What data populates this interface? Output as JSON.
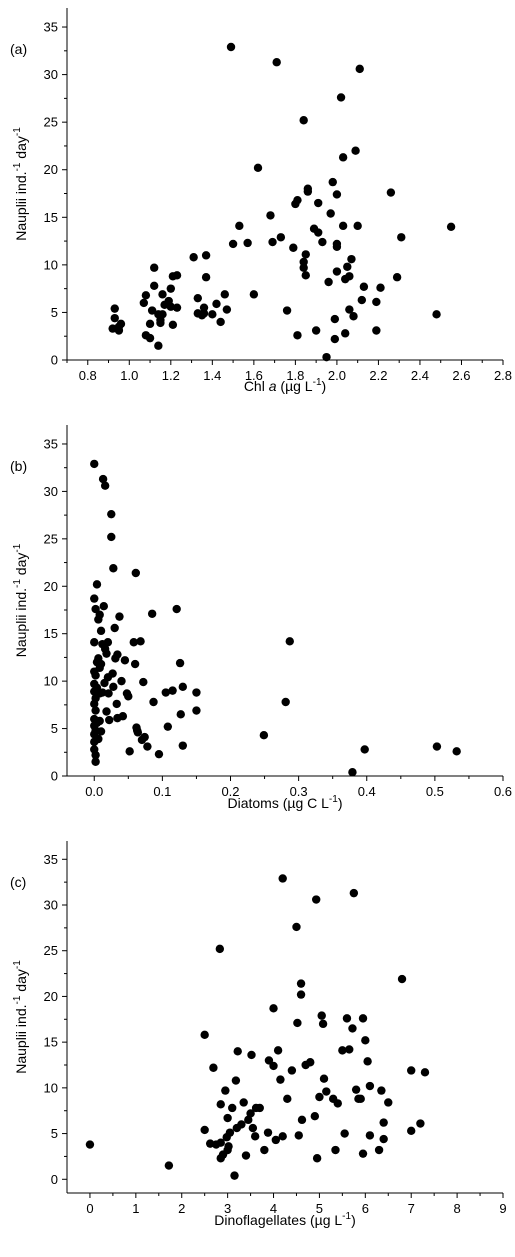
{
  "chart_data": [
    {
      "type": "scatter",
      "panel_label": "(a)",
      "xlabel": {
        "pre": "Chl ",
        "italic": "a",
        "post": " (µg L",
        "sup": "-1",
        "close": ")"
      },
      "ylabel": {
        "pre": "Nauplii ind.",
        "sup1": "-1",
        "mid": " day",
        "sup2": "-1"
      },
      "xlim": [
        0.7,
        2.8
      ],
      "ylim": [
        0,
        37
      ],
      "xticks": [
        0.8,
        1.0,
        1.2,
        1.4,
        1.6,
        1.8,
        2.0,
        2.2,
        2.4,
        2.6,
        2.8
      ],
      "xtick_labels": [
        "0.8",
        "1.0",
        "1.2",
        "1.4",
        "1.6",
        "1.8",
        "2.0",
        "2.2",
        "2.4",
        "2.6",
        "2.8"
      ],
      "yticks": [
        0,
        5,
        10,
        15,
        20,
        25,
        30,
        35
      ],
      "ytick_labels": [
        "0",
        "5",
        "10",
        "15",
        "20",
        "25",
        "30",
        "35"
      ],
      "points": [
        [
          0.92,
          3.3
        ],
        [
          0.93,
          4.4
        ],
        [
          0.93,
          5.4
        ],
        [
          0.95,
          3.1
        ],
        [
          0.96,
          3.8
        ],
        [
          0.95,
          3.5
        ],
        [
          1.07,
          6.0
        ],
        [
          1.08,
          6.8
        ],
        [
          1.08,
          2.6
        ],
        [
          1.1,
          3.8
        ],
        [
          1.1,
          2.3
        ],
        [
          1.11,
          5.2
        ],
        [
          1.12,
          7.8
        ],
        [
          1.12,
          9.7
        ],
        [
          1.14,
          4.8
        ],
        [
          1.14,
          1.5
        ],
        [
          1.15,
          4.2
        ],
        [
          1.15,
          3.9
        ],
        [
          1.16,
          6.9
        ],
        [
          1.16,
          4.8
        ],
        [
          1.17,
          5.8
        ],
        [
          1.19,
          6.2
        ],
        [
          1.2,
          7.5
        ],
        [
          1.2,
          5.6
        ],
        [
          1.21,
          8.8
        ],
        [
          1.21,
          3.7
        ],
        [
          1.23,
          8.9
        ],
        [
          1.23,
          5.5
        ],
        [
          1.31,
          10.8
        ],
        [
          1.33,
          6.5
        ],
        [
          1.33,
          4.9
        ],
        [
          1.35,
          4.7
        ],
        [
          1.36,
          4.9
        ],
        [
          1.36,
          5.5
        ],
        [
          1.37,
          11.0
        ],
        [
          1.37,
          8.7
        ],
        [
          1.4,
          4.8
        ],
        [
          1.42,
          5.9
        ],
        [
          1.44,
          4.0
        ],
        [
          1.46,
          6.9
        ],
        [
          1.47,
          5.3
        ],
        [
          1.5,
          12.2
        ],
        [
          1.53,
          14.1
        ],
        [
          1.57,
          12.3
        ],
        [
          1.6,
          6.9
        ],
        [
          1.62,
          20.2
        ],
        [
          1.49,
          32.9
        ],
        [
          1.71,
          31.3
        ],
        [
          1.68,
          15.2
        ],
        [
          1.69,
          12.4
        ],
        [
          1.73,
          12.9
        ],
        [
          1.76,
          5.2
        ],
        [
          1.79,
          11.8
        ],
        [
          1.8,
          16.4
        ],
        [
          1.81,
          16.8
        ],
        [
          1.81,
          2.6
        ],
        [
          1.84,
          10.3
        ],
        [
          1.84,
          9.7
        ],
        [
          1.84,
          25.2
        ],
        [
          1.85,
          8.9
        ],
        [
          1.85,
          11.1
        ],
        [
          1.86,
          17.7
        ],
        [
          1.86,
          18.0
        ],
        [
          1.89,
          13.8
        ],
        [
          1.9,
          3.1
        ],
        [
          1.91,
          13.4
        ],
        [
          1.91,
          16.5
        ],
        [
          1.93,
          12.4
        ],
        [
          1.95,
          0.3
        ],
        [
          1.96,
          8.2
        ],
        [
          1.97,
          15.4
        ],
        [
          1.98,
          18.7
        ],
        [
          1.99,
          4.3
        ],
        [
          1.99,
          2.2
        ],
        [
          2.0,
          12.2
        ],
        [
          2.0,
          11.9
        ],
        [
          2.0,
          9.3
        ],
        [
          2.0,
          17.4
        ],
        [
          2.02,
          27.6
        ],
        [
          2.03,
          21.3
        ],
        [
          2.03,
          14.1
        ],
        [
          2.04,
          8.5
        ],
        [
          2.04,
          2.8
        ],
        [
          2.05,
          9.8
        ],
        [
          2.06,
          8.8
        ],
        [
          2.06,
          5.3
        ],
        [
          2.07,
          10.6
        ],
        [
          2.08,
          4.6
        ],
        [
          2.09,
          22.0
        ],
        [
          2.1,
          14.1
        ],
        [
          2.11,
          30.6
        ],
        [
          2.12,
          6.3
        ],
        [
          2.13,
          7.7
        ],
        [
          2.19,
          6.1
        ],
        [
          2.19,
          3.1
        ],
        [
          2.21,
          7.6
        ],
        [
          2.26,
          17.6
        ],
        [
          2.29,
          8.7
        ],
        [
          2.31,
          12.9
        ],
        [
          2.48,
          4.8
        ],
        [
          2.55,
          14.0
        ]
      ]
    },
    {
      "type": "scatter",
      "panel_label": "(b)",
      "xlabel": {
        "pre": "Diatoms (µg C L",
        "sup": "-1",
        "close": ")"
      },
      "ylabel": {
        "pre": "Nauplii ind.",
        "sup1": "-1",
        "mid": " day",
        "sup2": "-1"
      },
      "xlim": [
        -0.04,
        0.6
      ],
      "ylim": [
        0,
        37
      ],
      "xticks": [
        0.0,
        0.1,
        0.2,
        0.3,
        0.4,
        0.5,
        0.6
      ],
      "xtick_labels": [
        "0.0",
        "0.1",
        "0.2",
        "0.3",
        "0.4",
        "0.5",
        "0.6"
      ],
      "yticks": [
        0,
        5,
        10,
        15,
        20,
        25,
        30,
        35
      ],
      "ytick_labels": [
        "0",
        "5",
        "10",
        "15",
        "20",
        "25",
        "30",
        "35"
      ],
      "points": [
        [
          0.0,
          32.9
        ],
        [
          0.0,
          18.7
        ],
        [
          0.0,
          14.1
        ],
        [
          0.0,
          11.0
        ],
        [
          0.0,
          9.7
        ],
        [
          0.0,
          8.9
        ],
        [
          0.0,
          7.6
        ],
        [
          0.0,
          6.0
        ],
        [
          0.0,
          5.3
        ],
        [
          0.0,
          4.4
        ],
        [
          0.0,
          3.6
        ],
        [
          0.0,
          2.8
        ],
        [
          0.002,
          17.6
        ],
        [
          0.002,
          10.6
        ],
        [
          0.002,
          8.2
        ],
        [
          0.002,
          6.9
        ],
        [
          0.002,
          4.8
        ],
        [
          0.002,
          2.2
        ],
        [
          0.002,
          1.5
        ],
        [
          0.004,
          20.2
        ],
        [
          0.004,
          12.0
        ],
        [
          0.004,
          9.3
        ],
        [
          0.004,
          5.6
        ],
        [
          0.006,
          16.5
        ],
        [
          0.006,
          12.4
        ],
        [
          0.006,
          8.8
        ],
        [
          0.006,
          3.9
        ],
        [
          0.008,
          17.0
        ],
        [
          0.008,
          11.4
        ],
        [
          0.008,
          8.7
        ],
        [
          0.008,
          5.8
        ],
        [
          0.01,
          15.3
        ],
        [
          0.01,
          11.8
        ],
        [
          0.01,
          4.7
        ],
        [
          0.012,
          13.9
        ],
        [
          0.012,
          8.8
        ],
        [
          0.013,
          31.3
        ],
        [
          0.014,
          17.9
        ],
        [
          0.015,
          9.8
        ],
        [
          0.016,
          30.6
        ],
        [
          0.016,
          13.4
        ],
        [
          0.018,
          12.9
        ],
        [
          0.018,
          6.8
        ],
        [
          0.02,
          14.1
        ],
        [
          0.02,
          10.4
        ],
        [
          0.021,
          8.7
        ],
        [
          0.022,
          5.9
        ],
        [
          0.025,
          27.6
        ],
        [
          0.025,
          25.2
        ],
        [
          0.027,
          10.8
        ],
        [
          0.028,
          21.9
        ],
        [
          0.028,
          9.4
        ],
        [
          0.03,
          15.6
        ],
        [
          0.031,
          12.4
        ],
        [
          0.033,
          7.6
        ],
        [
          0.034,
          6.1
        ],
        [
          0.034,
          12.8
        ],
        [
          0.037,
          16.8
        ],
        [
          0.04,
          10.0
        ],
        [
          0.042,
          6.3
        ],
        [
          0.045,
          12.2
        ],
        [
          0.048,
          8.7
        ],
        [
          0.05,
          8.4
        ],
        [
          0.052,
          2.6
        ],
        [
          0.058,
          14.1
        ],
        [
          0.06,
          11.8
        ],
        [
          0.061,
          21.4
        ],
        [
          0.062,
          5.1
        ],
        [
          0.063,
          4.8
        ],
        [
          0.064,
          4.6
        ],
        [
          0.068,
          14.2
        ],
        [
          0.07,
          3.8
        ],
        [
          0.072,
          9.9
        ],
        [
          0.074,
          4.1
        ],
        [
          0.078,
          3.1
        ],
        [
          0.085,
          17.1
        ],
        [
          0.087,
          7.8
        ],
        [
          0.095,
          2.3
        ],
        [
          0.105,
          8.8
        ],
        [
          0.108,
          5.2
        ],
        [
          0.115,
          9.0
        ],
        [
          0.121,
          17.6
        ],
        [
          0.126,
          11.9
        ],
        [
          0.127,
          6.5
        ],
        [
          0.13,
          3.2
        ],
        [
          0.13,
          9.4
        ],
        [
          0.15,
          8.8
        ],
        [
          0.15,
          6.9
        ],
        [
          0.249,
          4.3
        ],
        [
          0.281,
          7.8
        ],
        [
          0.287,
          14.2
        ],
        [
          0.379,
          0.4
        ],
        [
          0.397,
          2.8
        ],
        [
          0.503,
          3.1
        ],
        [
          0.532,
          2.6
        ]
      ]
    },
    {
      "type": "scatter",
      "panel_label": "(c)",
      "xlabel": {
        "pre": "Dinoflagellates (µg L",
        "sup": "-1",
        "close": ")"
      },
      "ylabel": {
        "pre": "Nauplii ind.",
        "sup1": "-1",
        "mid": " day",
        "sup2": "-1"
      },
      "xlim": [
        -0.5,
        9
      ],
      "ylim": [
        -1.5,
        37
      ],
      "xticks": [
        0,
        1,
        2,
        3,
        4,
        5,
        6,
        7,
        8,
        9
      ],
      "xtick_labels": [
        "0",
        "1",
        "2",
        "3",
        "4",
        "5",
        "6",
        "7",
        "8",
        "9"
      ],
      "yticks": [
        0,
        5,
        10,
        15,
        20,
        25,
        30,
        35
      ],
      "ytick_labels": [
        "0",
        "5",
        "10",
        "15",
        "20",
        "25",
        "30",
        "35"
      ],
      "points": [
        [
          0.0,
          3.8
        ],
        [
          1.72,
          1.5
        ],
        [
          2.5,
          5.4
        ],
        [
          2.5,
          15.8
        ],
        [
          2.62,
          3.9
        ],
        [
          2.69,
          12.2
        ],
        [
          2.75,
          3.8
        ],
        [
          2.83,
          25.2
        ],
        [
          2.85,
          4.0
        ],
        [
          2.85,
          8.2
        ],
        [
          2.85,
          2.3
        ],
        [
          2.9,
          2.7
        ],
        [
          2.95,
          9.7
        ],
        [
          2.98,
          4.6
        ],
        [
          3.0,
          6.7
        ],
        [
          3.0,
          3.2
        ],
        [
          3.02,
          3.6
        ],
        [
          3.05,
          5.1
        ],
        [
          3.1,
          7.8
        ],
        [
          3.15,
          0.4
        ],
        [
          3.18,
          10.8
        ],
        [
          3.2,
          5.6
        ],
        [
          3.22,
          14.0
        ],
        [
          3.3,
          6.0
        ],
        [
          3.35,
          8.4
        ],
        [
          3.4,
          2.6
        ],
        [
          3.45,
          6.5
        ],
        [
          3.5,
          7.2
        ],
        [
          3.52,
          13.6
        ],
        [
          3.55,
          5.6
        ],
        [
          3.6,
          4.7
        ],
        [
          3.62,
          7.8
        ],
        [
          3.7,
          7.8
        ],
        [
          3.8,
          3.2
        ],
        [
          3.88,
          5.1
        ],
        [
          3.9,
          13.0
        ],
        [
          4.0,
          18.7
        ],
        [
          4.0,
          12.4
        ],
        [
          4.05,
          4.3
        ],
        [
          4.1,
          14.1
        ],
        [
          4.15,
          10.9
        ],
        [
          4.2,
          32.9
        ],
        [
          4.2,
          4.7
        ],
        [
          4.3,
          8.8
        ],
        [
          4.4,
          11.9
        ],
        [
          4.5,
          27.6
        ],
        [
          4.52,
          17.1
        ],
        [
          4.55,
          4.8
        ],
        [
          4.6,
          21.4
        ],
        [
          4.6,
          20.2
        ],
        [
          4.62,
          6.5
        ],
        [
          4.7,
          12.5
        ],
        [
          4.8,
          12.8
        ],
        [
          4.9,
          6.9
        ],
        [
          4.93,
          30.6
        ],
        [
          4.95,
          2.3
        ],
        [
          5.0,
          9.0
        ],
        [
          5.05,
          17.9
        ],
        [
          5.08,
          17.0
        ],
        [
          5.1,
          11.0
        ],
        [
          5.15,
          9.6
        ],
        [
          5.3,
          8.8
        ],
        [
          5.35,
          3.2
        ],
        [
          5.4,
          8.3
        ],
        [
          5.5,
          14.1
        ],
        [
          5.55,
          5.0
        ],
        [
          5.6,
          17.6
        ],
        [
          5.65,
          14.2
        ],
        [
          5.72,
          16.5
        ],
        [
          5.75,
          31.3
        ],
        [
          5.8,
          9.8
        ],
        [
          5.85,
          8.8
        ],
        [
          5.9,
          8.8
        ],
        [
          5.95,
          17.6
        ],
        [
          5.95,
          2.8
        ],
        [
          6.0,
          15.2
        ],
        [
          6.05,
          12.9
        ],
        [
          6.1,
          4.8
        ],
        [
          6.1,
          10.2
        ],
        [
          6.3,
          3.2
        ],
        [
          6.35,
          9.7
        ],
        [
          6.4,
          4.4
        ],
        [
          6.4,
          6.2
        ],
        [
          6.5,
          8.4
        ],
        [
          6.8,
          21.9
        ],
        [
          7.0,
          11.9
        ],
        [
          7.0,
          5.3
        ],
        [
          7.2,
          6.1
        ],
        [
          7.3,
          11.7
        ]
      ]
    }
  ]
}
